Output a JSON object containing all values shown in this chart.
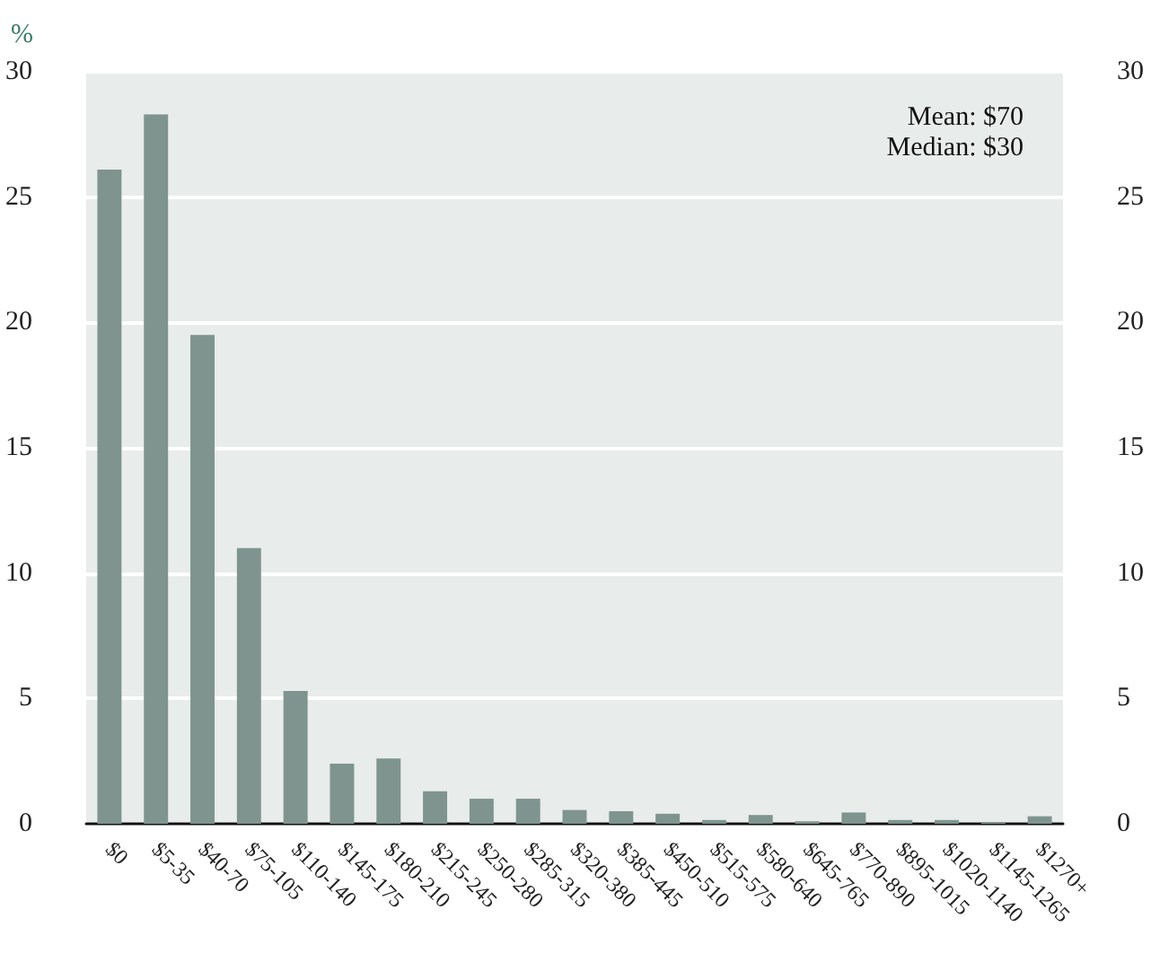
{
  "chart_data": {
    "type": "bar",
    "ylabel": "%",
    "categories": [
      "$0",
      "$5-35",
      "$40-70",
      "$75-105",
      "$110-140",
      "$145-175",
      "$180-210",
      "$215-245",
      "$250-280",
      "$285-315",
      "$320-380",
      "$385-445",
      "$450-510",
      "$515-575",
      "$580-640",
      "$645-765",
      "$770-890",
      "$895-1015",
      "$1020-1140",
      "$1145-1265",
      "$1270+"
    ],
    "values": [
      26.1,
      28.3,
      19.5,
      11.0,
      5.3,
      2.4,
      2.6,
      1.3,
      1.0,
      1.0,
      0.55,
      0.5,
      0.4,
      0.15,
      0.35,
      0.1,
      0.45,
      0.15,
      0.15,
      0.05,
      0.3
    ],
    "color": "#7f948f",
    "ylim": [
      0,
      30
    ],
    "yticks": [
      0,
      5,
      10,
      15,
      20,
      25,
      30
    ],
    "y2lim": [
      0,
      30
    ],
    "y2ticks": [
      0,
      5,
      10,
      15,
      20,
      25,
      30
    ],
    "grid": "y",
    "annotations": [
      "Mean: $70",
      "Median: $30"
    ]
  }
}
